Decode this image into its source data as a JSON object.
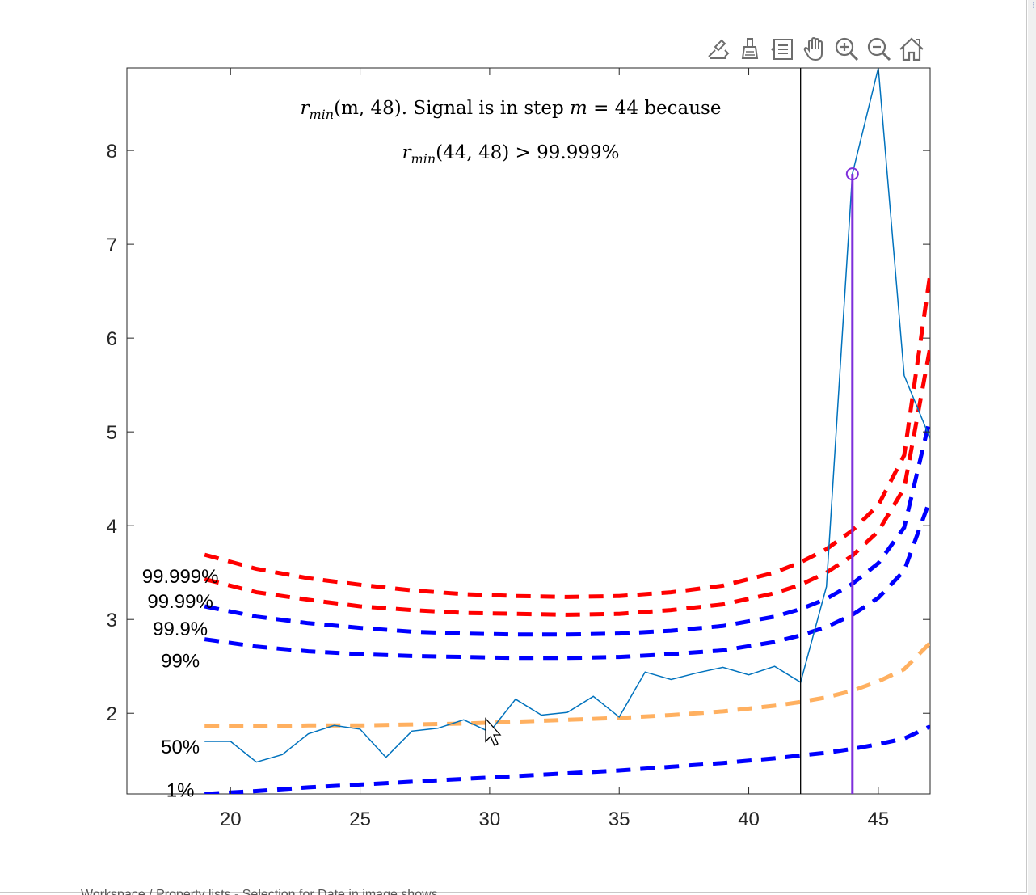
{
  "toolbar": {
    "buttons": [
      {
        "name": "edit-plot-icon",
        "label": "Edit"
      },
      {
        "name": "brush-icon",
        "label": "Brush"
      },
      {
        "name": "data-tips-icon",
        "label": "Data Tips"
      },
      {
        "name": "pan-icon",
        "label": "Pan"
      },
      {
        "name": "zoom-in-icon",
        "label": "Zoom In"
      },
      {
        "name": "zoom-out-icon",
        "label": "Zoom Out"
      },
      {
        "name": "home-icon",
        "label": "Restore View"
      }
    ]
  },
  "bottom_text": "Workspace / Property lists - Selection for Date in image shows",
  "chart_data": {
    "type": "line",
    "xlim": [
      16,
      47
    ],
    "ylim": [
      1.14,
      8.88
    ],
    "xticks": [
      20,
      25,
      30,
      35,
      40,
      45
    ],
    "yticks": [
      2,
      3,
      4,
      5,
      6,
      7,
      8
    ],
    "xtick_labels": [
      "20",
      "25",
      "30",
      "35",
      "40",
      "45"
    ],
    "ytick_labels": [
      "2",
      "3",
      "4",
      "5",
      "6",
      "7",
      "8"
    ],
    "grid": false,
    "title_line1": {
      "pre": "r",
      "sub": "min",
      "mid": "(m, 48). Signal is in step ",
      "var": "m",
      "post": " = 44 because"
    },
    "title_line2": {
      "pre": "r",
      "sub": "min",
      "post": "(44, 48) > 99.999%"
    },
    "signal": {
      "color": "#0072bd",
      "x": [
        19,
        20,
        21,
        22,
        23,
        24,
        25,
        26,
        27,
        28,
        29,
        30,
        31,
        32,
        33,
        34,
        35,
        36,
        37,
        38,
        39,
        40,
        41,
        42,
        43,
        44,
        45,
        46,
        47
      ],
      "y": [
        1.7,
        1.7,
        1.48,
        1.56,
        1.78,
        1.87,
        1.83,
        1.53,
        1.81,
        1.84,
        1.93,
        1.8,
        2.15,
        1.98,
        2.01,
        2.18,
        1.96,
        2.44,
        2.36,
        2.43,
        2.49,
        2.41,
        2.5,
        2.33,
        3.35,
        7.75,
        8.88,
        5.6,
        4.93
      ]
    },
    "thresholds": [
      {
        "label": "99.999%",
        "color": "#ff0000",
        "x": [
          19,
          21,
          23,
          25,
          27,
          29,
          31,
          33,
          35,
          37,
          39,
          41,
          42,
          43,
          44,
          45,
          46,
          47
        ],
        "y": [
          3.69,
          3.54,
          3.44,
          3.37,
          3.31,
          3.27,
          3.25,
          3.24,
          3.25,
          3.29,
          3.36,
          3.5,
          3.61,
          3.75,
          3.95,
          4.22,
          4.75,
          6.68
        ]
      },
      {
        "label": "99.99%",
        "color": "#ff0000",
        "x": [
          19,
          21,
          23,
          25,
          27,
          29,
          31,
          33,
          35,
          37,
          39,
          41,
          42,
          43,
          44,
          45,
          46,
          47
        ],
        "y": [
          3.43,
          3.29,
          3.21,
          3.14,
          3.1,
          3.07,
          3.06,
          3.05,
          3.06,
          3.1,
          3.16,
          3.28,
          3.37,
          3.5,
          3.68,
          3.94,
          4.4,
          5.9
        ]
      },
      {
        "label": "99.9%",
        "color": "#0000ff",
        "x": [
          19,
          21,
          23,
          25,
          27,
          29,
          31,
          33,
          35,
          37,
          39,
          41,
          42,
          43,
          44,
          45,
          46,
          47
        ],
        "y": [
          3.14,
          3.03,
          2.96,
          2.91,
          2.87,
          2.85,
          2.84,
          2.84,
          2.85,
          2.88,
          2.93,
          3.03,
          3.11,
          3.22,
          3.38,
          3.6,
          3.98,
          5.15
        ]
      },
      {
        "label": "99%",
        "color": "#0000ff",
        "x": [
          19,
          21,
          23,
          25,
          27,
          29,
          31,
          33,
          35,
          37,
          39,
          41,
          42,
          43,
          44,
          45,
          46,
          47
        ],
        "y": [
          2.79,
          2.71,
          2.66,
          2.63,
          2.61,
          2.6,
          2.59,
          2.59,
          2.6,
          2.63,
          2.67,
          2.76,
          2.83,
          2.92,
          3.05,
          3.23,
          3.52,
          4.28
        ]
      },
      {
        "label": "50%",
        "color": "#ffb060",
        "x": [
          19,
          21,
          23,
          25,
          27,
          29,
          31,
          33,
          35,
          37,
          39,
          41,
          42,
          43,
          44,
          45,
          46,
          47
        ],
        "y": [
          1.86,
          1.86,
          1.87,
          1.87,
          1.88,
          1.89,
          1.91,
          1.93,
          1.95,
          1.98,
          2.02,
          2.08,
          2.12,
          2.17,
          2.24,
          2.34,
          2.47,
          2.75
        ]
      },
      {
        "label": "1%",
        "color": "#0000ff",
        "x": [
          19,
          21,
          23,
          25,
          27,
          29,
          31,
          33,
          35,
          37,
          39,
          41,
          42,
          43,
          44,
          45,
          46,
          47
        ],
        "y": [
          1.14,
          1.17,
          1.21,
          1.24,
          1.27,
          1.3,
          1.33,
          1.36,
          1.39,
          1.43,
          1.47,
          1.52,
          1.55,
          1.58,
          1.62,
          1.67,
          1.73,
          1.86
        ]
      }
    ],
    "threshold_label_pos": [
      {
        "x": 18.0,
        "y": 3.46
      },
      {
        "x": 18.0,
        "y": 3.19
      },
      {
        "x": 18.0,
        "y": 2.9
      },
      {
        "x": 18.0,
        "y": 2.56
      },
      {
        "x": 18.0,
        "y": 1.64
      },
      {
        "x": 18.0,
        "y": 1.18
      }
    ],
    "vline_black_x": 42,
    "marker": {
      "x": 44,
      "y": 7.75,
      "color": "#7e2fdb"
    }
  }
}
